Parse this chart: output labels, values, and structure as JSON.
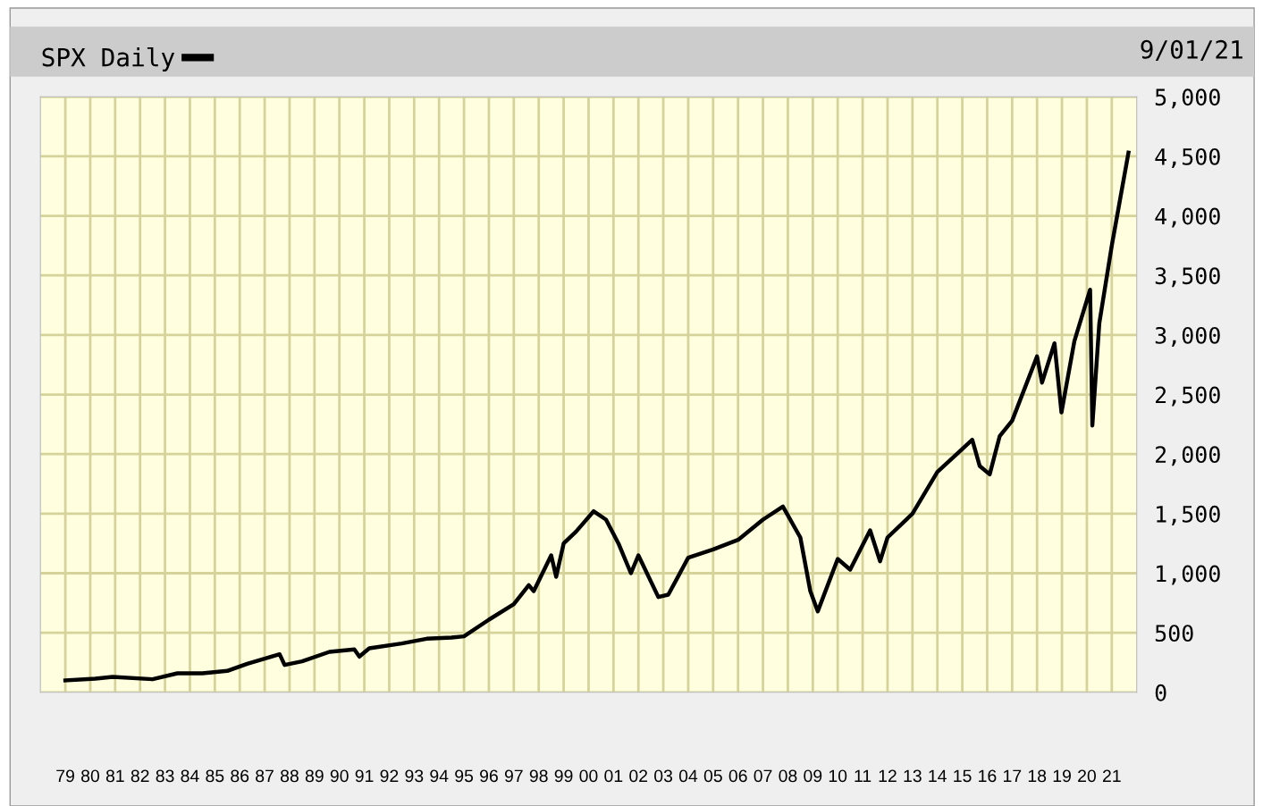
{
  "chart_data": {
    "type": "line",
    "annotations": [
      "9/01/21"
    ],
    "x": [
      1979.0,
      1980.2,
      1980.9,
      1982.5,
      1983.5,
      1984.5,
      1985.5,
      1986.3,
      1987.6,
      1987.8,
      1988.5,
      1989.6,
      1990.6,
      1990.8,
      1991.2,
      1992.5,
      1993.5,
      1994.5,
      1995.0,
      1996.0,
      1997.0,
      1997.6,
      1997.8,
      1998.5,
      1998.7,
      1999.0,
      1999.5,
      2000.2,
      2000.7,
      2001.2,
      2001.7,
      2002.0,
      2002.8,
      2003.2,
      2004.0,
      2005.0,
      2006.0,
      2007.0,
      2007.8,
      2008.5,
      2008.9,
      2009.2,
      2010.0,
      2010.5,
      2011.3,
      2011.7,
      2012.0,
      2013.0,
      2014.0,
      2015.4,
      2015.7,
      2016.1,
      2016.5,
      2017.0,
      2018.0,
      2018.2,
      2018.7,
      2018.98,
      2019.5,
      2020.13,
      2020.22,
      2020.5,
      2021.0,
      2021.67
    ],
    "series": [
      {
        "name": "SPX Daily",
        "color": "#000000",
        "values": [
          100,
          115,
          130,
          110,
          160,
          160,
          180,
          240,
          320,
          230,
          260,
          340,
          360,
          300,
          370,
          410,
          450,
          460,
          470,
          610,
          740,
          900,
          850,
          1150,
          970,
          1250,
          1350,
          1520,
          1450,
          1250,
          1000,
          1150,
          800,
          820,
          1130,
          1200,
          1280,
          1450,
          1560,
          1300,
          850,
          680,
          1120,
          1030,
          1360,
          1100,
          1300,
          1500,
          1850,
          2120,
          1900,
          1830,
          2150,
          2280,
          2820,
          2600,
          2930,
          2350,
          2950,
          3380,
          2240,
          3100,
          3750,
          4530
        ]
      }
    ],
    "xlim": [
      1978.0,
      2022.0
    ],
    "xticks": [
      {
        "value": 1979,
        "label": "79"
      },
      {
        "value": 1980,
        "label": "80"
      },
      {
        "value": 1981,
        "label": "81"
      },
      {
        "value": 1982,
        "label": "82"
      },
      {
        "value": 1983,
        "label": "83"
      },
      {
        "value": 1984,
        "label": "84"
      },
      {
        "value": 1985,
        "label": "85"
      },
      {
        "value": 1986,
        "label": "86"
      },
      {
        "value": 1987,
        "label": "87"
      },
      {
        "value": 1988,
        "label": "88"
      },
      {
        "value": 1989,
        "label": "89"
      },
      {
        "value": 1990,
        "label": "90"
      },
      {
        "value": 1991,
        "label": "91"
      },
      {
        "value": 1992,
        "label": "92"
      },
      {
        "value": 1993,
        "label": "93"
      },
      {
        "value": 1994,
        "label": "94"
      },
      {
        "value": 1995,
        "label": "95"
      },
      {
        "value": 1996,
        "label": "96"
      },
      {
        "value": 1997,
        "label": "97"
      },
      {
        "value": 1998,
        "label": "98"
      },
      {
        "value": 1999,
        "label": "99"
      },
      {
        "value": 2000,
        "label": "00"
      },
      {
        "value": 2001,
        "label": "01"
      },
      {
        "value": 2002,
        "label": "02"
      },
      {
        "value": 2003,
        "label": "03"
      },
      {
        "value": 2004,
        "label": "04"
      },
      {
        "value": 2005,
        "label": "05"
      },
      {
        "value": 2006,
        "label": "06"
      },
      {
        "value": 2007,
        "label": "07"
      },
      {
        "value": 2008,
        "label": "08"
      },
      {
        "value": 2009,
        "label": "09"
      },
      {
        "value": 2010,
        "label": "10"
      },
      {
        "value": 2011,
        "label": "11"
      },
      {
        "value": 2012,
        "label": "12"
      },
      {
        "value": 2013,
        "label": "13"
      },
      {
        "value": 2014,
        "label": "14"
      },
      {
        "value": 2015,
        "label": "15"
      },
      {
        "value": 2016,
        "label": "16"
      },
      {
        "value": 2017,
        "label": "17"
      },
      {
        "value": 2018,
        "label": "18"
      },
      {
        "value": 2019,
        "label": "19"
      },
      {
        "value": 2020,
        "label": "20"
      },
      {
        "value": 2021,
        "label": "21"
      }
    ],
    "ylim": [
      0,
      5000
    ],
    "yticks": [
      0,
      {
        "value": 500,
        "label": "500"
      },
      {
        "value": 1000,
        "label": "1,000"
      },
      {
        "value": 1500,
        "label": "1,500"
      },
      {
        "value": 2000,
        "label": "2,000"
      },
      {
        "value": 2500,
        "label": "2,500"
      },
      {
        "value": 3000,
        "label": "3,000"
      },
      {
        "value": 3500,
        "label": "3,500"
      },
      {
        "value": 4000,
        "label": "4,000"
      },
      {
        "value": 4500,
        "label": "4,500"
      },
      {
        "value": 5000,
        "label": "5,000"
      }
    ],
    "grid": true,
    "legend": "top left",
    "line_style": "solid",
    "marker": "none"
  }
}
